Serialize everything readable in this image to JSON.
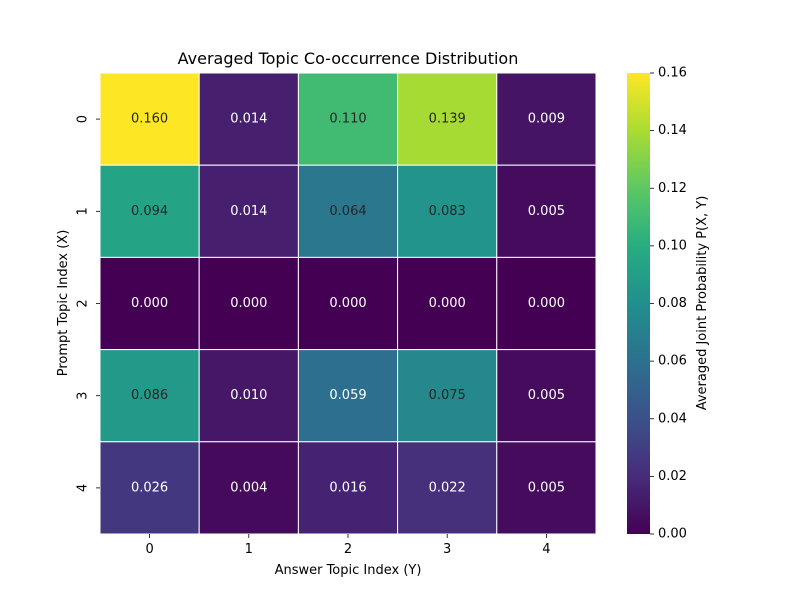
{
  "chart_data": {
    "type": "heatmap",
    "title": "Averaged Topic Co-occurrence Distribution",
    "xlabel": "Answer Topic Index (Y)",
    "ylabel": "Prompt Topic Index (X)",
    "x_categories": [
      "0",
      "1",
      "2",
      "3",
      "4"
    ],
    "y_categories": [
      "0",
      "1",
      "2",
      "3",
      "4"
    ],
    "values": [
      [
        0.16,
        0.014,
        0.11,
        0.139,
        0.009
      ],
      [
        0.094,
        0.014,
        0.064,
        0.083,
        0.005
      ],
      [
        0.0,
        0.0,
        0.0,
        0.0,
        0.0
      ],
      [
        0.086,
        0.01,
        0.059,
        0.075,
        0.005
      ],
      [
        0.026,
        0.004,
        0.016,
        0.022,
        0.005
      ]
    ],
    "colormap": "viridis",
    "vmin": 0.0,
    "vmax": 0.16,
    "colorbar": {
      "label": "Averaged Joint Probability P(X, Y)",
      "ticks": [
        0.0,
        0.02,
        0.04,
        0.06,
        0.08,
        0.1,
        0.12,
        0.14,
        0.16
      ]
    }
  }
}
